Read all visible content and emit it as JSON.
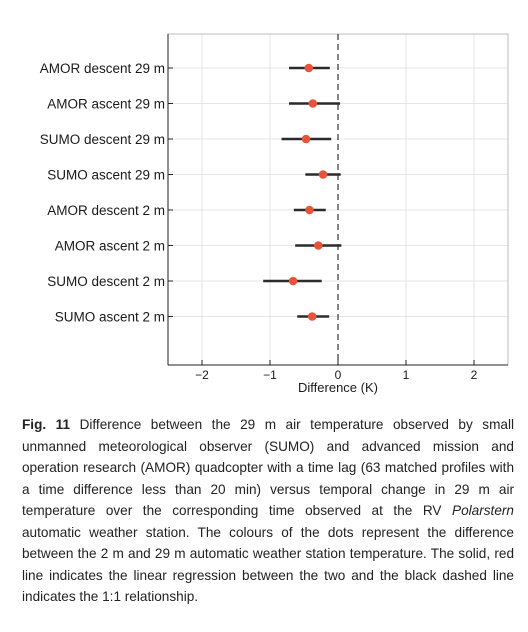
{
  "chart_data": {
    "type": "scatter",
    "subtype": "dot-with-error-bars",
    "orientation": "horizontal",
    "xlabel": "Difference (K)",
    "xlim": [
      -2.5,
      2.5
    ],
    "xticks": [
      -2,
      -1,
      0,
      1,
      2
    ],
    "xtick_labels": [
      "−2",
      "−1",
      "0",
      "1",
      "2"
    ],
    "grid": true,
    "reference_line": {
      "x": 0,
      "style": "dashed",
      "color": "#333333"
    },
    "point_color": "#e8543a",
    "bar_color": "#2b2b2b",
    "categories": [
      "AMOR descent 29 m",
      "AMOR ascent 29 m",
      "SUMO descent 29 m",
      "SUMO ascent 29 m",
      "AMOR descent 2 m",
      "AMOR ascent 2 m",
      "SUMO descent 2 m",
      "SUMO ascent 2 m"
    ],
    "values": [
      -0.43,
      -0.37,
      -0.47,
      -0.22,
      -0.42,
      -0.29,
      -0.66,
      -0.38
    ],
    "error_low": [
      -0.72,
      -0.72,
      -0.83,
      -0.48,
      -0.65,
      -0.63,
      -1.1,
      -0.6
    ],
    "error_high": [
      -0.12,
      0.03,
      -0.1,
      0.04,
      -0.18,
      0.05,
      -0.24,
      -0.13
    ]
  },
  "caption": {
    "label": "Fig. 11",
    "text": "Difference between the 29 m air temperature observed by small unmanned meteorological observer (SUMO) and advanced mission and operation research (AMOR) quadcopter with a time lag (63 matched profiles with a time difference less than 20 min) versus temporal change in 29 m air temperature over the corresponding time observed at the RV",
    "italic": "Polarstern",
    "text_end": "automatic weather station. The colours of the dots represent the difference between the 2 m and 29 m automatic weather station temperature. The solid, red line indicates the linear regression between the two and the black dashed line indicates the 1:1 relationship."
  }
}
